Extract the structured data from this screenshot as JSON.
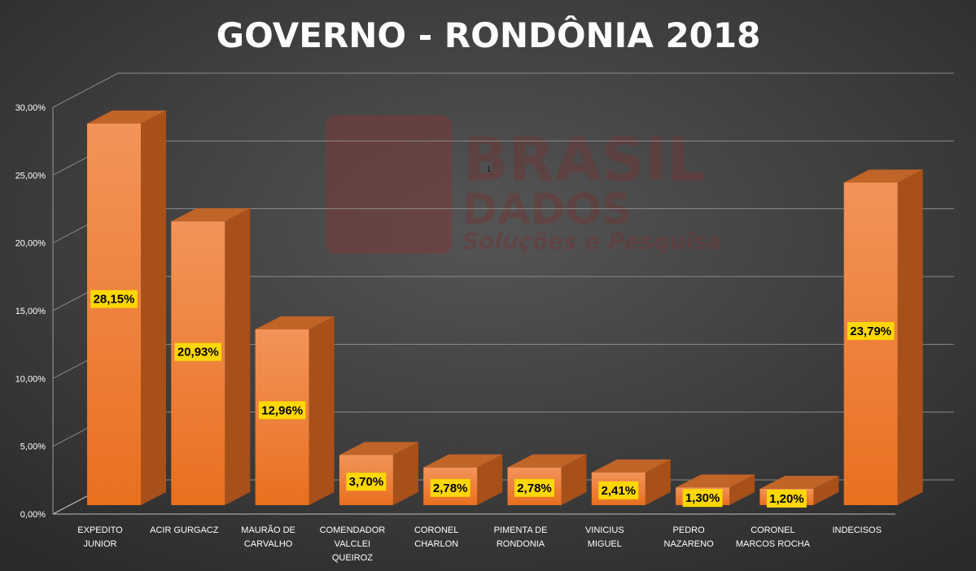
{
  "chart_data": {
    "type": "bar",
    "title": "GOVERNO - RONDÔNIA 2018",
    "categories": [
      [
        "EXPEDITO",
        "JUNIOR"
      ],
      [
        "ACIR GURGACZ"
      ],
      [
        "MAURÃO DE",
        "CARVALHO"
      ],
      [
        "COMENDADOR",
        "VALCLEI",
        "QUEIROZ"
      ],
      [
        "CORONEL",
        "CHARLON"
      ],
      [
        "PIMENTA DE",
        "RONDONIA"
      ],
      [
        "VINICIUS",
        "MIGUEL"
      ],
      [
        "PEDRO",
        "NAZARENO"
      ],
      [
        "CORONEL",
        "MARCOS ROCHA"
      ],
      [
        "INDECISOS"
      ]
    ],
    "values": [
      28.15,
      20.93,
      12.96,
      3.7,
      2.78,
      2.78,
      2.41,
      1.3,
      1.2,
      23.79
    ],
    "data_labels": [
      "28,15%",
      "20,93%",
      "12,96%",
      "3,70%",
      "2,78%",
      "2,78%",
      "2,41%",
      "1,30%",
      "1,20%",
      "23,79%"
    ],
    "y_ticks": [
      {
        "value": 0,
        "label": "0,00%"
      },
      {
        "value": 5,
        "label": "5,00%"
      },
      {
        "value": 10,
        "label": "10,00%"
      },
      {
        "value": 15,
        "label": "15,00%"
      },
      {
        "value": 20,
        "label": "20,00%"
      },
      {
        "value": 25,
        "label": "25,00%"
      },
      {
        "value": 30,
        "label": "30,00%"
      }
    ],
    "ylim": [
      0,
      30
    ],
    "grid": true,
    "legend": "none",
    "style": "3d-column"
  },
  "stray_mark": "1",
  "watermark": {
    "line1": "BRASIL",
    "line2": "DADOS",
    "line3": "Soluções e Pesquisa"
  },
  "colors": {
    "background": "#3a3a3a",
    "bar_front_top": "#f08a4b",
    "bar_front_bottom": "#e8701f",
    "bar_side": "#a8501a",
    "bar_top": "#c06428",
    "label_bg": "#ffd700",
    "gridline": "#8a8a8a"
  }
}
